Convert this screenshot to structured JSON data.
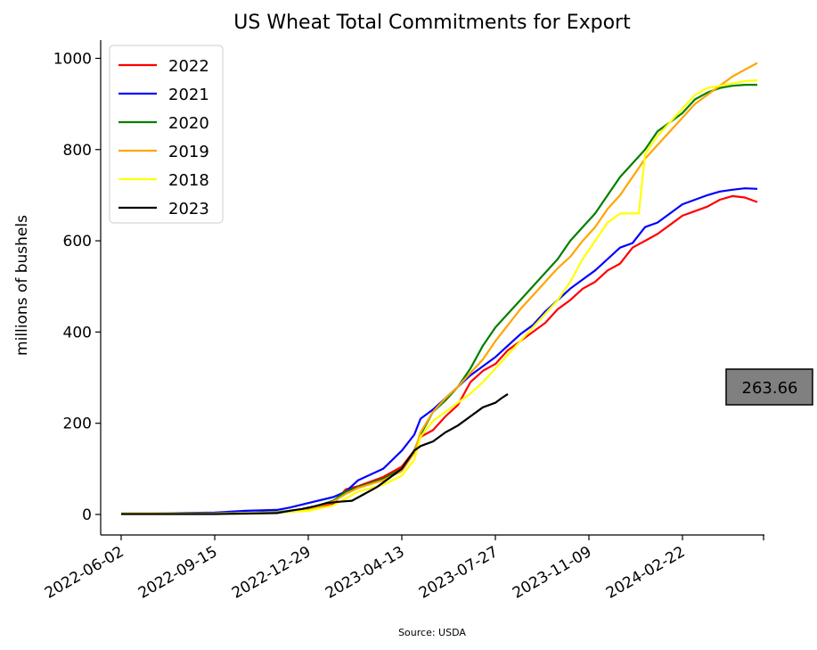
{
  "chart_data": {
    "type": "line",
    "title": "US Wheat Total Commitments for Export",
    "xlabel": "",
    "ylabel": "millions of bushels",
    "source": "Source: USDA",
    "x_tick_labels": [
      "2022-06-02",
      "2022-09-15",
      "2022-12-29",
      "2023-04-13",
      "2023-07-27",
      "2023-11-09",
      "2024-02-22"
    ],
    "y_ticks": [
      0,
      200,
      400,
      600,
      800,
      1000
    ],
    "xlim": [
      "2022-05-10",
      "2024-05-24"
    ],
    "ylim": [
      -45,
      1040
    ],
    "grid": false,
    "legend_position": "top-left",
    "annotation": {
      "text": "263.66",
      "value": 263.66,
      "color": "#808080"
    },
    "series": [
      {
        "name": "2022",
        "color": "#ff0000",
        "x": [
          "2022-06-02",
          "2022-07-07",
          "2022-08-11",
          "2022-09-15",
          "2022-10-20",
          "2022-11-24",
          "2022-12-15",
          "2022-12-29",
          "2023-01-26",
          "2023-02-09",
          "2023-02-23",
          "2023-03-23",
          "2023-04-13",
          "2023-04-27",
          "2023-05-04",
          "2023-05-18",
          "2023-06-01",
          "2023-06-15",
          "2023-06-29",
          "2023-07-13",
          "2023-07-27",
          "2023-08-10",
          "2023-08-24",
          "2023-09-07",
          "2023-09-21",
          "2023-10-05",
          "2023-10-19",
          "2023-11-02",
          "2023-11-16",
          "2023-11-30",
          "2023-12-14",
          "2023-12-28",
          "2024-01-11",
          "2024-01-25",
          "2024-02-08",
          "2024-02-22",
          "2024-03-07",
          "2024-03-21",
          "2024-04-04",
          "2024-04-18",
          "2024-05-02",
          "2024-05-16"
        ],
        "values": [
          2,
          2,
          2,
          2,
          3,
          5,
          8,
          12,
          22,
          55,
          62,
          82,
          105,
          140,
          170,
          185,
          215,
          240,
          290,
          315,
          330,
          360,
          380,
          400,
          420,
          450,
          470,
          495,
          510,
          535,
          550,
          585,
          600,
          615,
          635,
          655,
          665,
          675,
          690,
          698,
          695,
          685
        ]
      },
      {
        "name": "2021",
        "color": "#0000ff",
        "x": [
          "2022-06-02",
          "2022-07-07",
          "2022-08-11",
          "2022-09-15",
          "2022-10-20",
          "2022-11-24",
          "2022-12-08",
          "2022-12-29",
          "2023-01-26",
          "2023-02-09",
          "2023-02-23",
          "2023-03-23",
          "2023-04-13",
          "2023-04-27",
          "2023-05-04",
          "2023-05-18",
          "2023-06-01",
          "2023-06-15",
          "2023-06-29",
          "2023-07-13",
          "2023-07-27",
          "2023-08-10",
          "2023-08-24",
          "2023-09-07",
          "2023-09-21",
          "2023-10-05",
          "2023-10-19",
          "2023-11-02",
          "2023-11-16",
          "2023-11-30",
          "2023-12-14",
          "2023-12-28",
          "2024-01-11",
          "2024-01-25",
          "2024-02-08",
          "2024-02-22",
          "2024-03-07",
          "2024-03-21",
          "2024-04-04",
          "2024-04-18",
          "2024-05-02",
          "2024-05-16"
        ],
        "values": [
          2,
          2,
          3,
          4,
          8,
          10,
          15,
          25,
          38,
          50,
          75,
          100,
          140,
          175,
          210,
          230,
          255,
          280,
          305,
          325,
          345,
          370,
          395,
          415,
          445,
          470,
          495,
          515,
          535,
          560,
          585,
          595,
          630,
          640,
          660,
          680,
          690,
          700,
          708,
          712,
          715,
          714
        ]
      },
      {
        "name": "2020",
        "color": "#008000",
        "x": [
          "2022-06-02",
          "2022-07-07",
          "2022-08-11",
          "2022-09-15",
          "2022-10-20",
          "2022-11-24",
          "2022-12-29",
          "2023-01-26",
          "2023-02-09",
          "2023-02-23",
          "2023-03-23",
          "2023-04-13",
          "2023-04-27",
          "2023-05-04",
          "2023-05-18",
          "2023-06-01",
          "2023-06-15",
          "2023-06-29",
          "2023-07-13",
          "2023-07-27",
          "2023-08-10",
          "2023-08-24",
          "2023-09-07",
          "2023-09-21",
          "2023-10-05",
          "2023-10-19",
          "2023-11-02",
          "2023-11-16",
          "2023-11-30",
          "2023-12-14",
          "2023-12-28",
          "2024-01-11",
          "2024-01-25",
          "2024-02-08",
          "2024-02-22",
          "2024-03-07",
          "2024-03-21",
          "2024-04-04",
          "2024-04-18",
          "2024-05-02",
          "2024-05-16"
        ],
        "values": [
          2,
          2,
          2,
          2,
          3,
          5,
          12,
          30,
          50,
          60,
          78,
          100,
          140,
          175,
          225,
          250,
          280,
          320,
          370,
          410,
          440,
          470,
          500,
          530,
          560,
          600,
          630,
          660,
          700,
          740,
          770,
          800,
          840,
          860,
          880,
          910,
          925,
          935,
          940,
          942,
          942
        ]
      },
      {
        "name": "2019",
        "color": "#ffa500",
        "x": [
          "2022-06-02",
          "2022-07-07",
          "2022-08-11",
          "2022-09-15",
          "2022-10-20",
          "2022-11-24",
          "2022-12-29",
          "2023-01-26",
          "2023-02-09",
          "2023-02-23",
          "2023-03-23",
          "2023-04-13",
          "2023-04-27",
          "2023-05-04",
          "2023-05-18",
          "2023-06-01",
          "2023-06-15",
          "2023-06-29",
          "2023-07-13",
          "2023-07-27",
          "2023-08-10",
          "2023-08-24",
          "2023-09-07",
          "2023-09-21",
          "2023-10-05",
          "2023-10-19",
          "2023-11-02",
          "2023-11-16",
          "2023-11-30",
          "2023-12-14",
          "2023-12-28",
          "2024-01-11",
          "2024-01-25",
          "2024-02-08",
          "2024-02-22",
          "2024-03-07",
          "2024-03-21",
          "2024-04-04",
          "2024-04-18",
          "2024-05-02",
          "2024-05-16"
        ],
        "values": [
          2,
          2,
          2,
          2,
          3,
          4,
          10,
          28,
          45,
          58,
          75,
          95,
          135,
          180,
          225,
          255,
          280,
          310,
          340,
          380,
          415,
          450,
          480,
          510,
          540,
          565,
          600,
          630,
          670,
          700,
          740,
          780,
          810,
          840,
          870,
          900,
          920,
          940,
          960,
          975,
          990
        ]
      },
      {
        "name": "2018",
        "color": "#ffff00",
        "x": [
          "2022-06-02",
          "2022-07-07",
          "2022-08-11",
          "2022-09-15",
          "2022-10-20",
          "2022-11-24",
          "2022-12-29",
          "2023-01-26",
          "2023-02-09",
          "2023-02-23",
          "2023-03-23",
          "2023-04-13",
          "2023-04-27",
          "2023-05-04",
          "2023-05-18",
          "2023-06-01",
          "2023-06-15",
          "2023-06-29",
          "2023-07-13",
          "2023-07-27",
          "2023-08-10",
          "2023-08-24",
          "2023-09-07",
          "2023-09-21",
          "2023-10-05",
          "2023-10-19",
          "2023-11-02",
          "2023-11-16",
          "2023-11-30",
          "2023-12-14",
          "2023-12-28",
          "2024-01-04",
          "2024-01-11",
          "2024-01-25",
          "2024-02-08",
          "2024-02-22",
          "2024-03-07",
          "2024-03-21",
          "2024-04-04",
          "2024-04-18",
          "2024-05-02",
          "2024-05-16"
        ],
        "values": [
          2,
          2,
          2,
          2,
          3,
          4,
          8,
          20,
          35,
          50,
          65,
          85,
          120,
          170,
          205,
          225,
          245,
          265,
          290,
          320,
          350,
          380,
          410,
          440,
          470,
          510,
          560,
          600,
          640,
          660,
          660,
          660,
          790,
          830,
          860,
          890,
          920,
          935,
          940,
          945,
          950,
          952
        ]
      },
      {
        "name": "2023",
        "color": "#000000",
        "x": [
          "2022-06-02",
          "2022-07-07",
          "2022-08-11",
          "2022-09-15",
          "2022-10-20",
          "2022-11-24",
          "2022-12-08",
          "2022-12-22",
          "2023-01-05",
          "2023-01-19",
          "2023-02-02",
          "2023-02-16",
          "2023-03-02",
          "2023-03-16",
          "2023-03-30",
          "2023-04-13",
          "2023-04-27",
          "2023-05-04",
          "2023-05-11",
          "2023-05-18",
          "2023-06-01",
          "2023-06-15",
          "2023-06-29",
          "2023-07-13",
          "2023-07-27",
          "2023-08-03",
          "2023-08-10"
        ],
        "values": [
          1,
          1,
          1,
          1,
          2,
          3,
          8,
          12,
          18,
          25,
          28,
          30,
          45,
          60,
          80,
          100,
          140,
          150,
          155,
          160,
          180,
          195,
          215,
          235,
          245,
          255,
          264
        ]
      }
    ]
  }
}
